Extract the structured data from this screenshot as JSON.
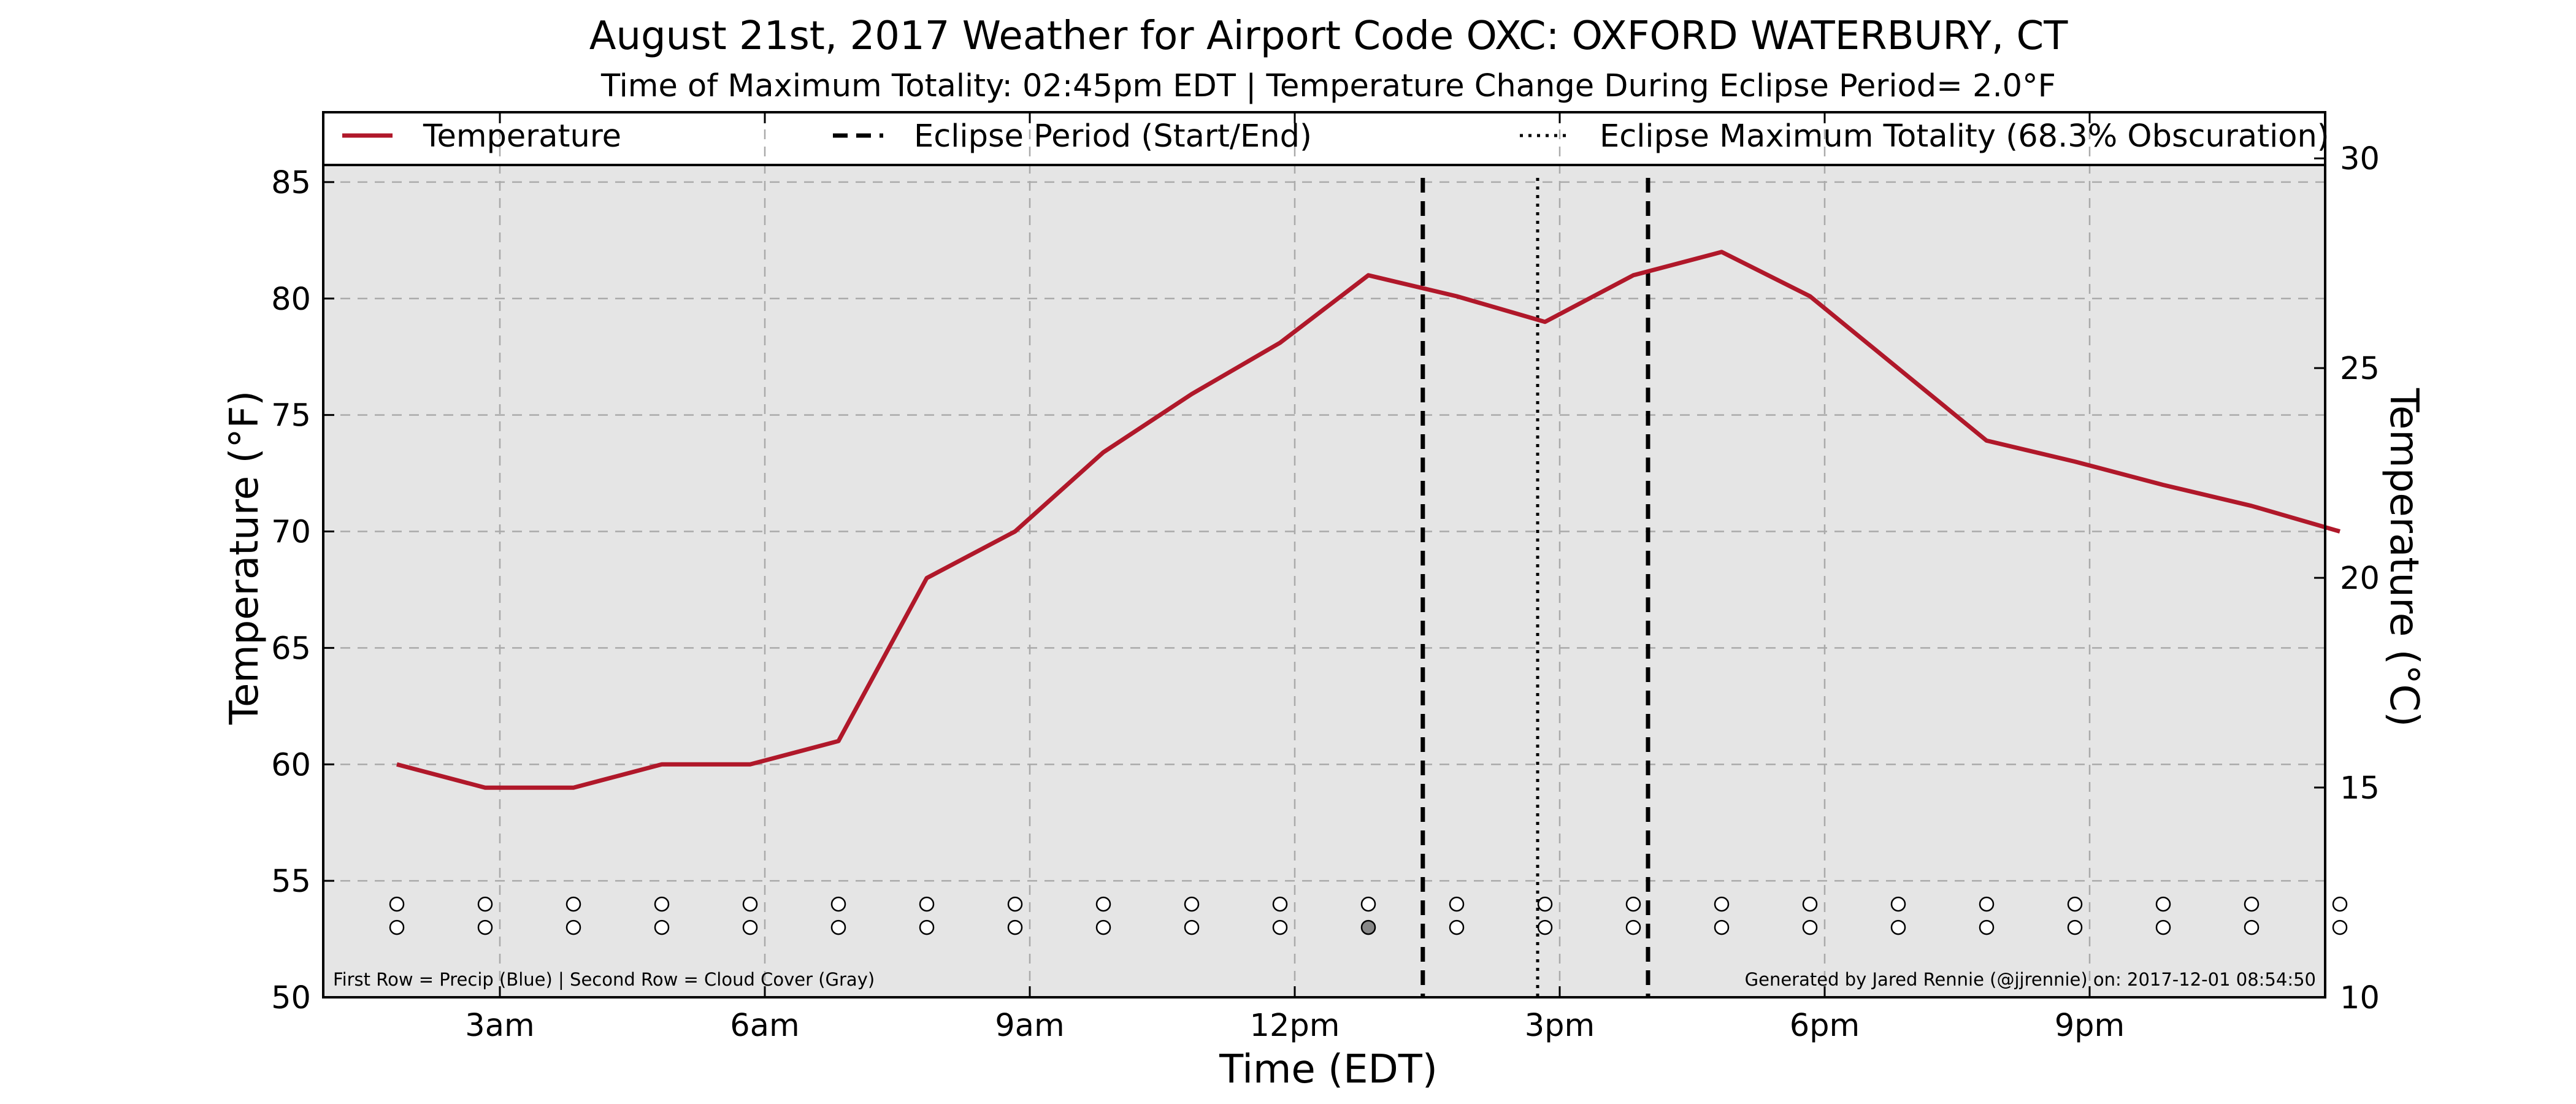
{
  "chart_data": {
    "type": "line",
    "title": "August 21st, 2017 Weather for Airport Code OXC: OXFORD WATERBURY, CT",
    "subtitle": "Time of Maximum Totality: 02:45pm EDT | Temperature Change During Eclipse Period= 2.0°F",
    "xlabel": "Time (EDT)",
    "ylabel": "Temperature (°F)",
    "ylabel_right": "Temperature (°C)",
    "xlim": [
      "01:00",
      "23:40"
    ],
    "ylim": [
      50,
      88
    ],
    "ylim_right_celsius": [
      10,
      31.1
    ],
    "x_ticks": [
      {
        "time": "03:00",
        "label": "3am"
      },
      {
        "time": "06:00",
        "label": "6am"
      },
      {
        "time": "09:00",
        "label": "9am"
      },
      {
        "time": "12:00",
        "label": "12pm"
      },
      {
        "time": "15:00",
        "label": "3pm"
      },
      {
        "time": "18:00",
        "label": "6pm"
      },
      {
        "time": "21:00",
        "label": "9pm"
      }
    ],
    "y_ticks": [
      50,
      55,
      60,
      65,
      70,
      75,
      80,
      85
    ],
    "y_ticks_right": [
      10,
      15,
      20,
      25,
      30
    ],
    "grid": true,
    "legend_position": "top",
    "legend": [
      {
        "label": "Temperature",
        "style": "solid"
      },
      {
        "label": "Eclipse Period (Start/End)",
        "style": "dashed"
      },
      {
        "label": "Eclipse Maximum Totality (68.3% Obscuration)",
        "style": "dotted"
      }
    ],
    "series": [
      {
        "name": "Temperature",
        "color": "#b0182a",
        "points": [
          {
            "time": "01:50",
            "value": 60
          },
          {
            "time": "02:50",
            "value": 59
          },
          {
            "time": "03:50",
            "value": 59
          },
          {
            "time": "04:50",
            "value": 60
          },
          {
            "time": "05:50",
            "value": 60
          },
          {
            "time": "06:50",
            "value": 61
          },
          {
            "time": "07:50",
            "value": 68
          },
          {
            "time": "08:50",
            "value": 70
          },
          {
            "time": "09:50",
            "value": 73.4
          },
          {
            "time": "10:50",
            "value": 75.9
          },
          {
            "time": "11:50",
            "value": 78.1
          },
          {
            "time": "12:50",
            "value": 81
          },
          {
            "time": "13:50",
            "value": 80.1
          },
          {
            "time": "14:50",
            "value": 79
          },
          {
            "time": "15:50",
            "value": 81
          },
          {
            "time": "16:50",
            "value": 82
          },
          {
            "time": "17:50",
            "value": 80.1
          },
          {
            "time": "18:50",
            "value": 77
          },
          {
            "time": "19:50",
            "value": 73.9
          },
          {
            "time": "20:50",
            "value": 73
          },
          {
            "time": "21:50",
            "value": 72
          },
          {
            "time": "22:50",
            "value": 71.1
          },
          {
            "time": "23:50",
            "value": 70
          }
        ]
      }
    ],
    "eclipse": {
      "start": "13:27",
      "end": "16:00",
      "max_totality": "14:45"
    },
    "observations": {
      "precip_y": 54,
      "cloud_y": 53,
      "precip_color": "#ffffff",
      "cloud_clear_color": "#ffffff",
      "cloud_covered_color": "#888888",
      "times": [
        "01:50",
        "02:50",
        "03:50",
        "04:50",
        "05:50",
        "06:50",
        "07:50",
        "08:50",
        "09:50",
        "10:50",
        "11:50",
        "12:50",
        "13:50",
        "14:50",
        "15:50",
        "16:50",
        "17:50",
        "18:50",
        "19:50",
        "20:50",
        "21:50",
        "22:50",
        "23:50"
      ],
      "cloud_covered": [
        false,
        false,
        false,
        false,
        false,
        false,
        false,
        false,
        false,
        false,
        false,
        true,
        false,
        false,
        false,
        false,
        false,
        false,
        false,
        false,
        false,
        false,
        false
      ]
    },
    "footnote_left": "First Row = Precip (Blue) | Second Row = Cloud Cover (Gray)",
    "footnote_right": "Generated by Jared Rennie (@jjrennie) on: 2017-12-01 08:54:50",
    "colors": {
      "plot_background": "#e5e5e5",
      "line": "#b0182a",
      "grid": "#aaaaaa"
    }
  }
}
